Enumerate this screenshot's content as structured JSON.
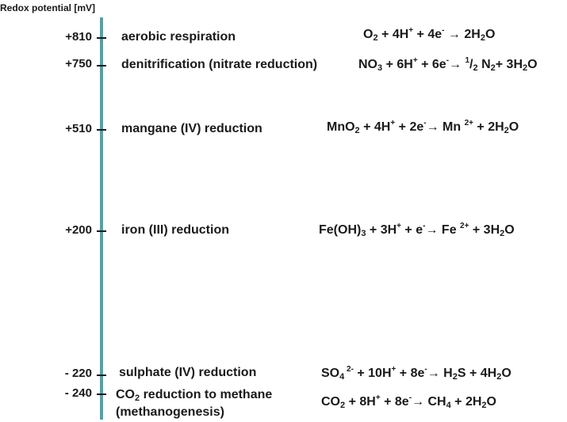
{
  "axis": {
    "title": "Redox potential [mV]"
  },
  "levels": [
    {
      "value": "+810",
      "process": "aerobic respiration"
    },
    {
      "value": "+750",
      "process": "denitrification (nitrate reduction)"
    },
    {
      "value": "+510",
      "process": "mangane (IV) reduction"
    },
    {
      "value": "+200",
      "process": "iron (III) reduction"
    },
    {
      "value": "- 220",
      "process": "sulphate (IV) reduction"
    },
    {
      "value": "- 240",
      "process_line1": "reduction to methane",
      "process_line2": "(methanogenesis)"
    }
  ],
  "equations": {
    "e0": {
      "a": "O",
      "a_sub": "2",
      "b": " + 4H",
      "b_sup": "+",
      "c": " + 4e",
      "c_sup": "-",
      "d": " → 2H",
      "d_sub": "2",
      "e": "O"
    },
    "e1": {
      "a": "NO",
      "a_sub": "3",
      "b": " + 6H",
      "b_sup": "+",
      "c": " + 6e",
      "c_sup": "-",
      "d": "→ ",
      "d_sup": "1",
      "e": "/",
      "e_sub": "2",
      "f": " N",
      "f_sub": "2",
      "g": "+ 3H",
      "g_sub": "2",
      "h": "O"
    },
    "e2": {
      "a": "MnO",
      "a_sub": "2",
      "b": " + 4H",
      "b_sup": "+",
      "c": " + 2e",
      "c_sup": "-",
      "d": "→ Mn ",
      "d_sup": "2+",
      "e": " + 2H",
      "e_sub": "2",
      "f": "O"
    },
    "e3": {
      "a": "Fe(OH)",
      "a_sub": "3",
      "b": " + 3H",
      "b_sup": "+",
      "c": " + e",
      "c_sup": "-",
      "d": "→ Fe ",
      "d_sup": "2+",
      "e": " + 3H",
      "e_sub": "2",
      "f": "O"
    },
    "e4": {
      "a": "SO",
      "a_sub": "4",
      "b_sup": " 2-",
      "c": " + 10H",
      "c_sup": "+",
      "d": " + 8e",
      "d_sup": "-",
      "e": "→ H",
      "e_sub": "2",
      "f": "S  + 4H",
      "f_sub": "2",
      "g": "O"
    },
    "e5": {
      "a": "CO",
      "a_sub": "2",
      "b": " + 8H",
      "b_sup": "+",
      "c": " + 8e",
      "c_sup": "-",
      "d": "→ CH",
      "d_sub": "4",
      "e": "  + 2H",
      "e_sub": "2",
      "f": "O"
    }
  },
  "co2_label": {
    "a": "CO",
    "a_sub": "2"
  }
}
